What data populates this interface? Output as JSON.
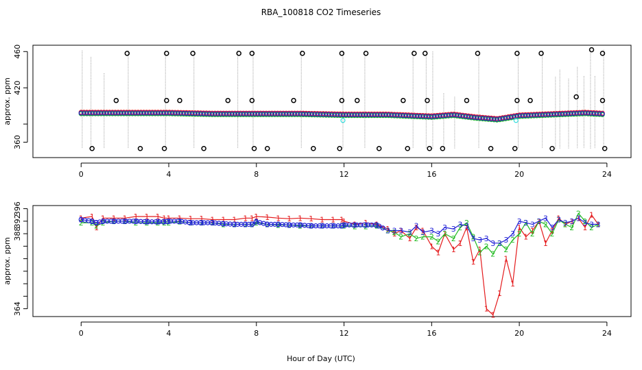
{
  "title": "RBA_100818  CO2 Timeseries",
  "colors": {
    "series1": "#e41a1c",
    "series2": "#22bb22",
    "series3": "#1f1fd6",
    "cyan": "#33dddd",
    "outlier": "#000000",
    "spike": "#9a9a9a",
    "frame": "#000000"
  },
  "chart_data": [
    {
      "type": "scatter",
      "panel": "top",
      "xlabel": "",
      "ylabel": "approx. ppm",
      "xlim": [
        -2.2,
        25.1
      ],
      "ylim": [
        343,
        467
      ],
      "x_ticks": [
        0,
        4,
        8,
        12,
        16,
        20,
        24
      ],
      "y_ticks": [
        360,
        380,
        420,
        460
      ],
      "y_tick_labels": [
        "360",
        "",
        "420",
        "460"
      ],
      "grid": false,
      "legend": "none",
      "outliers_high": [
        2.1,
        3.9,
        5.1,
        7.2,
        7.8,
        10.1,
        11.9,
        13.0,
        15.2,
        15.7,
        18.1,
        19.9,
        21.0,
        23.3,
        23.8
      ],
      "outliers_high_y": [
        458,
        458,
        458,
        458,
        458,
        458,
        458,
        458,
        458,
        458,
        458,
        458,
        458,
        462,
        458
      ],
      "outliers_mid": [
        1.6,
        3.9,
        4.5,
        6.7,
        7.8,
        9.7,
        11.9,
        12.6,
        14.7,
        15.8,
        17.6,
        19.9,
        20.5,
        22.6,
        23.8
      ],
      "outliers_mid_y": [
        406,
        406,
        406,
        406,
        406,
        406,
        406,
        406,
        406,
        406,
        406,
        406,
        406,
        410,
        406
      ],
      "outliers_low": [
        0.5,
        2.7,
        3.8,
        5.6,
        7.9,
        8.5,
        10.6,
        11.8,
        13.6,
        14.9,
        15.9,
        16.5,
        18.7,
        19.8,
        21.5,
        23.9
      ],
      "outliers_low_y": [
        353,
        353,
        353,
        353,
        353,
        353,
        353,
        353,
        353,
        353,
        353,
        353,
        353,
        353,
        353,
        353
      ],
      "baseline_anchors_x": [
        0,
        2,
        4,
        6,
        8,
        10,
        12,
        14,
        15,
        16,
        17,
        18,
        19,
        20,
        21,
        22,
        23,
        23.8
      ],
      "baseline_anchors_y": [
        392,
        392,
        392,
        391,
        391,
        391,
        390,
        390,
        389,
        388,
        390,
        387,
        385,
        389,
        390,
        391,
        392,
        391
      ],
      "spikes_x": [
        0.05,
        0.45,
        1.05,
        2.15,
        3.85,
        5.15,
        7.15,
        7.85,
        10.05,
        11.95,
        12.95,
        15.15,
        15.75,
        16.05,
        16.55,
        17.05,
        18.15,
        19.95,
        21.05,
        21.65,
        21.85,
        22.25,
        22.65,
        22.95,
        23.25,
        23.45,
        23.85
      ],
      "spikes_top": [
        461,
        454,
        436,
        461,
        461,
        461,
        461,
        461,
        461,
        461,
        461,
        461,
        461,
        460,
        414,
        410,
        461,
        461,
        461,
        432,
        440,
        430,
        443,
        433,
        462,
        433,
        462
      ]
    },
    {
      "type": "line",
      "panel": "bottom",
      "xlabel": "Hour of Day (UTC)",
      "ylabel": "approx. ppm",
      "xlim": [
        -2.2,
        25.1
      ],
      "ylim": [
        361.5,
        397
      ],
      "x_ticks": [
        0,
        4,
        8,
        12,
        16,
        20,
        24
      ],
      "y_ticks": [
        364,
        368,
        372,
        376,
        380,
        384,
        388,
        392,
        396
      ],
      "y_tick_labels": [
        "364",
        "",
        "",
        "",
        "",
        "",
        "388",
        "392",
        "396"
      ],
      "grid": false,
      "legend": "none",
      "series_markers": [
        "1",
        "2",
        "3"
      ],
      "series": [
        {
          "x": [
            0,
            0.5,
            0.7,
            1,
            1.5,
            2,
            2.5,
            3,
            3.5,
            3.8,
            4,
            4.5,
            5,
            5.5,
            6,
            6.5,
            7,
            7.5,
            7.8,
            8,
            8.5,
            9,
            9.5,
            10,
            10.5,
            11,
            11.5,
            11.9,
            12,
            12.5,
            13,
            13.5,
            14,
            14.3,
            14.6,
            15,
            15.3,
            15.6,
            16,
            16.3,
            16.6,
            17,
            17.3,
            17.6,
            17.9,
            18.2,
            18.5,
            18.8,
            19.1,
            19.4,
            19.7,
            20,
            20.3,
            20.6,
            20.9,
            21.2,
            21.5,
            21.8,
            22.1,
            22.4,
            22.7,
            23,
            23.3,
            23.6
          ],
          "values": [
            393,
            393.5,
            390,
            393,
            393,
            393,
            393.5,
            393.5,
            393.5,
            393,
            393,
            393,
            392.8,
            392.8,
            392.5,
            392.5,
            392.5,
            393,
            393,
            393.5,
            393.3,
            393,
            392.8,
            393,
            392.8,
            392.5,
            392.5,
            392.5,
            392,
            391,
            391.5,
            391,
            389.5,
            388,
            389,
            386.5,
            390,
            389,
            384,
            382,
            388,
            383,
            385,
            390,
            379,
            383,
            364,
            362,
            369,
            380,
            372,
            390,
            387,
            389,
            392,
            385,
            389,
            393,
            391,
            392,
            393,
            390,
            394,
            391
          ]
        },
        {
          "x": [
            0,
            0.5,
            0.7,
            1,
            1.5,
            2,
            2.5,
            3,
            3.5,
            3.8,
            4,
            4.5,
            5,
            5.5,
            6,
            6.5,
            7,
            7.5,
            7.8,
            8,
            8.5,
            9,
            9.5,
            10,
            10.5,
            11,
            11.5,
            11.9,
            12,
            12.5,
            13,
            13.5,
            14,
            14.3,
            14.6,
            15,
            15.3,
            15.6,
            16,
            16.3,
            16.6,
            17,
            17.3,
            17.6,
            17.9,
            18.2,
            18.5,
            18.8,
            19.1,
            19.4,
            19.7,
            20,
            20.3,
            20.6,
            20.9,
            21.2,
            21.5,
            21.8,
            22.1,
            22.4,
            22.7,
            23,
            23.3,
            23.6
          ],
          "values": [
            391.5,
            391.5,
            390.5,
            391.5,
            392,
            392,
            391.5,
            391.5,
            391.5,
            391.5,
            391.5,
            391.8,
            391.5,
            391.5,
            391.5,
            391,
            391,
            391,
            391,
            391.5,
            391,
            390.8,
            390.8,
            390.5,
            390.5,
            390.5,
            390.5,
            390.5,
            390.5,
            390.3,
            390.3,
            390.5,
            389,
            388.5,
            387,
            388,
            386.5,
            387,
            387,
            385.5,
            388,
            386.5,
            390,
            391.5,
            387,
            382,
            384,
            381.5,
            385,
            383,
            386,
            388,
            391.5,
            388,
            392,
            391,
            388,
            392.5,
            391,
            390,
            394.5,
            392,
            390,
            391
          ]
        },
        {
          "x": [
            0,
            0.5,
            0.7,
            1,
            1.5,
            2,
            2.5,
            3,
            3.5,
            3.8,
            4,
            4.5,
            5,
            5.5,
            6,
            6.5,
            7,
            7.5,
            7.8,
            8,
            8.5,
            9,
            9.5,
            10,
            10.5,
            11,
            11.5,
            11.9,
            12,
            12.5,
            13,
            13.5,
            14,
            14.3,
            14.6,
            15,
            15.3,
            15.6,
            16,
            16.3,
            16.6,
            17,
            17.3,
            17.6,
            17.9,
            18.2,
            18.5,
            18.8,
            19.1,
            19.4,
            19.7,
            20,
            20.3,
            20.6,
            20.9,
            21.2,
            21.5,
            21.8,
            22.1,
            22.4,
            22.7,
            23,
            23.3,
            23.6
          ],
          "values": [
            392.5,
            392,
            391.5,
            392,
            392,
            392,
            392,
            391.8,
            391.8,
            391.8,
            392,
            392,
            391.5,
            391.5,
            391.5,
            391.2,
            391,
            391,
            391,
            391.8,
            391,
            391,
            390.8,
            390.8,
            390.5,
            390.5,
            390.5,
            390.5,
            390.8,
            390.8,
            390.8,
            390.8,
            389,
            389,
            389,
            388.5,
            390.5,
            388.5,
            389,
            388,
            390,
            389.5,
            391,
            390.5,
            386.5,
            386,
            386.5,
            385,
            385,
            386,
            388,
            392,
            391.5,
            391,
            392,
            393,
            390,
            392.5,
            391.5,
            392,
            393,
            391.5,
            391,
            391
          ]
        }
      ]
    }
  ]
}
